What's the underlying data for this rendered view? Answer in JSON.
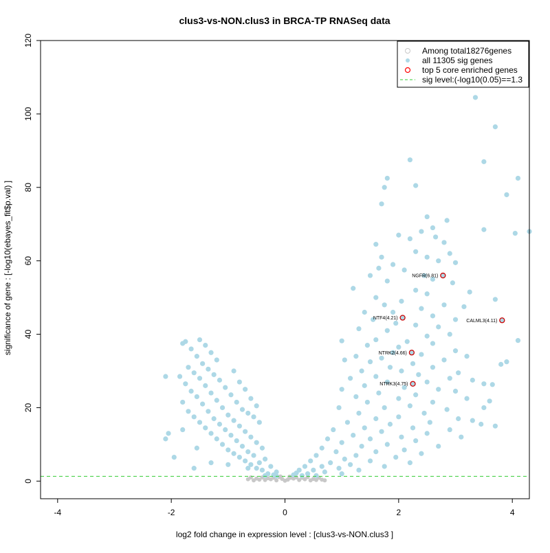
{
  "chart_data": {
    "type": "scatter",
    "title": "clus3-vs-NON.clus3 in BRCA-TP RNASeq data",
    "xlabel": "log2 fold change in expression level : [clus3-vs-NON.clus3 ]",
    "ylabel": "significance of gene : [-log10(ebayes_fit$p.val) ]",
    "xlim": [
      -4.3,
      4.3
    ],
    "ylim": [
      -4.8,
      120
    ],
    "x_ticks": [
      -4,
      -2,
      0,
      2,
      4
    ],
    "y_ticks": [
      0,
      20,
      40,
      60,
      80,
      100,
      120
    ],
    "x_tick_labels": [
      "-4",
      "-2",
      "0",
      "2",
      "4"
    ],
    "y_tick_labels": [
      "0",
      "20",
      "40",
      "60",
      "80",
      "100",
      "120"
    ],
    "grid": false,
    "legend_position": "top-right",
    "legend": [
      {
        "label": "Among total18276genes",
        "marker": "open-circle",
        "color": "#c8c8c8"
      },
      {
        "label": "all 11305 sig genes",
        "marker": "filled-circle",
        "color": "#add8e6"
      },
      {
        "label": "top 5 core enriched genes",
        "marker": "open-circle",
        "color": "#ff0000"
      },
      {
        "label": "sig level:(-log10(0.05)==1.3",
        "marker": "dashed-line",
        "color": "#00cc00"
      }
    ],
    "sig_level": 1.3,
    "colors": {
      "background_genes": "#c8c8c8",
      "sig_genes": "#add8e6",
      "core_genes": "#cc0000",
      "sig_line": "#33cc33"
    },
    "series": [
      {
        "name": "all 11305 sig genes",
        "points": [
          [
            3.35,
            104.5
          ],
          [
            3.7,
            96.5
          ],
          [
            2.2,
            87.5
          ],
          [
            3.5,
            87
          ],
          [
            1.8,
            82.5
          ],
          [
            4.1,
            82.5
          ],
          [
            1.75,
            80
          ],
          [
            2.3,
            80.5
          ],
          [
            3.9,
            78
          ],
          [
            1.7,
            75.5
          ],
          [
            2.5,
            72
          ],
          [
            2.85,
            71
          ],
          [
            2.6,
            69
          ],
          [
            3.5,
            68.5
          ],
          [
            2.4,
            68
          ],
          [
            4.05,
            67.5
          ],
          [
            4.3,
            68
          ],
          [
            2.0,
            67
          ],
          [
            2.2,
            66
          ],
          [
            2.65,
            66.5
          ],
          [
            2.8,
            65
          ],
          [
            1.6,
            64.5
          ],
          [
            2.3,
            62.5
          ],
          [
            2.5,
            61
          ],
          [
            2.9,
            62
          ],
          [
            1.7,
            61
          ],
          [
            1.65,
            58
          ],
          [
            2.7,
            60
          ],
          [
            3.0,
            59.5
          ],
          [
            1.9,
            59
          ],
          [
            2.1,
            57.5
          ],
          [
            2.45,
            56
          ],
          [
            1.5,
            56
          ],
          [
            2.6,
            55
          ],
          [
            1.8,
            54.5
          ],
          [
            2.95,
            54
          ],
          [
            1.2,
            52.5
          ],
          [
            2.3,
            52
          ],
          [
            2.5,
            51
          ],
          [
            3.25,
            51.5
          ],
          [
            1.6,
            50
          ],
          [
            3.7,
            49.5
          ],
          [
            2.05,
            49
          ],
          [
            1.75,
            48
          ],
          [
            2.4,
            47
          ],
          [
            3.15,
            47.5
          ],
          [
            2.8,
            48
          ],
          [
            1.4,
            46
          ],
          [
            1.9,
            46
          ],
          [
            2.6,
            45
          ],
          [
            3.0,
            44
          ],
          [
            1.55,
            44
          ],
          [
            1.95,
            43
          ],
          [
            2.3,
            42.5
          ],
          [
            2.7,
            42
          ],
          [
            1.3,
            41.5
          ],
          [
            1.8,
            41
          ],
          [
            2.9,
            40
          ],
          [
            2.5,
            39.5
          ],
          [
            1.6,
            38.5
          ],
          [
            2.15,
            38
          ],
          [
            2.6,
            37.5
          ],
          [
            4.1,
            38.3
          ],
          [
            1.0,
            38.2
          ],
          [
            1.45,
            37
          ],
          [
            2.0,
            36.5
          ],
          [
            3.0,
            35.5
          ],
          [
            1.9,
            35
          ],
          [
            2.4,
            34.5
          ],
          [
            3.2,
            34
          ],
          [
            1.25,
            34
          ],
          [
            1.7,
            33.5
          ],
          [
            2.8,
            33
          ],
          [
            3.9,
            32.5
          ],
          [
            1.05,
            33
          ],
          [
            1.5,
            32.5
          ],
          [
            2.25,
            32
          ],
          [
            3.8,
            31.8
          ],
          [
            2.6,
            31
          ],
          [
            1.85,
            31
          ],
          [
            1.35,
            30
          ],
          [
            2.05,
            30
          ],
          [
            3.05,
            29.5
          ],
          [
            2.35,
            29
          ],
          [
            1.6,
            28.5
          ],
          [
            2.9,
            28
          ],
          [
            1.15,
            28
          ],
          [
            3.3,
            27.5
          ],
          [
            2.5,
            27
          ],
          [
            1.8,
            27
          ],
          [
            3.5,
            26.5
          ],
          [
            3.65,
            26.3
          ],
          [
            1.4,
            26
          ],
          [
            2.1,
            25.5
          ],
          [
            2.7,
            25
          ],
          [
            1.0,
            25
          ],
          [
            3.0,
            24.5
          ],
          [
            1.65,
            24
          ],
          [
            2.3,
            23.5
          ],
          [
            1.25,
            23
          ],
          [
            3.2,
            22.5
          ],
          [
            2.0,
            22.5
          ],
          [
            2.6,
            21.5
          ],
          [
            1.45,
            21.5
          ],
          [
            3.6,
            21.8
          ],
          [
            2.2,
            20.5
          ],
          [
            0.95,
            20
          ],
          [
            1.75,
            20
          ],
          [
            3.5,
            20
          ],
          [
            2.85,
            19.5
          ],
          [
            2.45,
            18.5
          ],
          [
            1.3,
            18.5
          ],
          [
            2.0,
            17.5
          ],
          [
            3.05,
            17
          ],
          [
            1.6,
            17
          ],
          [
            3.3,
            16.5
          ],
          [
            2.55,
            16
          ],
          [
            1.1,
            16
          ],
          [
            1.85,
            15.5
          ],
          [
            3.45,
            15.5
          ],
          [
            2.25,
            14.5
          ],
          [
            1.4,
            14.5
          ],
          [
            2.9,
            14
          ],
          [
            3.7,
            15
          ],
          [
            0.85,
            14
          ],
          [
            1.7,
            13.5
          ],
          [
            2.5,
            13
          ],
          [
            1.2,
            12.5
          ],
          [
            2.05,
            12
          ],
          [
            3.1,
            12
          ],
          [
            1.5,
            11.5
          ],
          [
            0.75,
            11.5
          ],
          [
            2.3,
            11
          ],
          [
            1.0,
            10.5
          ],
          [
            1.8,
            10
          ],
          [
            2.7,
            9.5
          ],
          [
            1.35,
            9.5
          ],
          [
            0.65,
            9
          ],
          [
            2.1,
            8.5
          ],
          [
            1.6,
            8
          ],
          [
            0.9,
            8
          ],
          [
            2.4,
            7.5
          ],
          [
            1.25,
            7
          ],
          [
            0.55,
            7
          ],
          [
            1.95,
            6.5
          ],
          [
            1.05,
            6
          ],
          [
            0.45,
            5.5
          ],
          [
            1.5,
            5.5
          ],
          [
            0.8,
            5
          ],
          [
            2.2,
            5
          ],
          [
            1.15,
            4.5
          ],
          [
            0.35,
            4
          ],
          [
            0.65,
            4
          ],
          [
            1.75,
            4
          ],
          [
            0.95,
            3.5
          ],
          [
            0.25,
            3
          ],
          [
            0.5,
            3
          ],
          [
            1.3,
            3
          ],
          [
            0.7,
            2.5
          ],
          [
            0.2,
            2.2
          ],
          [
            0.4,
            2
          ],
          [
            1.0,
            2
          ],
          [
            0.15,
            1.7
          ],
          [
            0.3,
            1.5
          ],
          [
            0.55,
            1.5
          ],
          [
            -0.2,
            1.7
          ],
          [
            -0.3,
            2
          ],
          [
            -0.15,
            2.5
          ],
          [
            -0.4,
            3
          ],
          [
            -0.5,
            3.5
          ],
          [
            -0.25,
            4
          ],
          [
            -0.6,
            4.5
          ],
          [
            -0.45,
            5
          ],
          [
            -0.7,
            5.5
          ],
          [
            -0.35,
            6
          ],
          [
            -0.8,
            6.5
          ],
          [
            -0.55,
            7
          ],
          [
            -0.9,
            7.5
          ],
          [
            -0.65,
            8
          ],
          [
            -1.0,
            8.5
          ],
          [
            -0.4,
            9
          ],
          [
            -0.75,
            9.5
          ],
          [
            -1.1,
            10
          ],
          [
            -0.5,
            10.5
          ],
          [
            -0.85,
            11
          ],
          [
            -1.2,
            11.5
          ],
          [
            -0.6,
            12
          ],
          [
            -0.95,
            12.5
          ],
          [
            -1.3,
            13
          ],
          [
            -0.7,
            13.5
          ],
          [
            -1.05,
            14
          ],
          [
            -1.4,
            14.5
          ],
          [
            -0.8,
            15
          ],
          [
            -1.15,
            15.5
          ],
          [
            -0.45,
            16
          ],
          [
            -1.5,
            16
          ],
          [
            -0.9,
            16.5
          ],
          [
            -1.25,
            17
          ],
          [
            -0.55,
            17.5
          ],
          [
            -1.6,
            17.5
          ],
          [
            -1.0,
            18
          ],
          [
            -0.65,
            18.5
          ],
          [
            -1.35,
            19
          ],
          [
            -1.7,
            19
          ],
          [
            -0.75,
            19.5
          ],
          [
            -1.1,
            20
          ],
          [
            -0.5,
            20.5
          ],
          [
            -1.45,
            21
          ],
          [
            -0.85,
            21.5
          ],
          [
            -1.8,
            21.5
          ],
          [
            -1.2,
            22
          ],
          [
            -0.6,
            22.5
          ],
          [
            -1.55,
            23
          ],
          [
            -0.95,
            23.5
          ],
          [
            -1.3,
            24
          ],
          [
            -1.65,
            24.5
          ],
          [
            -0.7,
            25
          ],
          [
            -1.05,
            25.5
          ],
          [
            -1.4,
            26
          ],
          [
            -1.75,
            26.5
          ],
          [
            -0.8,
            27
          ],
          [
            -1.15,
            27.5
          ],
          [
            -1.5,
            28
          ],
          [
            -1.85,
            28.5
          ],
          [
            -1.25,
            29
          ],
          [
            -1.6,
            29.5
          ],
          [
            -0.9,
            30
          ],
          [
            -1.35,
            30.5
          ],
          [
            -1.7,
            31
          ],
          [
            -1.45,
            32
          ],
          [
            -1.2,
            33
          ],
          [
            -1.55,
            34
          ],
          [
            -1.3,
            35
          ],
          [
            -1.65,
            36
          ],
          [
            -1.4,
            37
          ],
          [
            -1.75,
            38
          ],
          [
            -1.5,
            38.5
          ],
          [
            -1.8,
            37.5
          ],
          [
            -2.1,
            28.5
          ],
          [
            -2.05,
            13
          ],
          [
            -2.1,
            11.5
          ],
          [
            -1.95,
            6.5
          ],
          [
            -1.55,
            9
          ],
          [
            -1.3,
            5
          ],
          [
            -1.0,
            4.5
          ],
          [
            -0.65,
            3.5
          ],
          [
            -0.35,
            1.5
          ],
          [
            -0.15,
            1.4
          ],
          [
            -1.8,
            14
          ],
          [
            -1.6,
            3.5
          ]
        ]
      }
    ],
    "background_points": [
      [
        -0.35,
        0.3
      ],
      [
        -0.25,
        0.5
      ],
      [
        -0.15,
        0.2
      ],
      [
        -0.05,
        0.6
      ],
      [
        0.05,
        0.4
      ],
      [
        0.15,
        0.7
      ],
      [
        0.25,
        0.3
      ],
      [
        0.35,
        0.5
      ],
      [
        -0.45,
        0.4
      ],
      [
        0.45,
        0.2
      ],
      [
        -0.2,
        0.9
      ],
      [
        0.2,
        1.0
      ],
      [
        0.0,
        0.1
      ],
      [
        -0.1,
        1.1
      ],
      [
        0.1,
        0.9
      ],
      [
        -0.3,
        0.8
      ],
      [
        0.3,
        0.9
      ],
      [
        -0.4,
        1.0
      ],
      [
        0.4,
        1.1
      ],
      [
        0.5,
        0.6
      ],
      [
        -0.5,
        0.7
      ],
      [
        0.55,
        0.3
      ],
      [
        -0.55,
        0.2
      ],
      [
        0.6,
        0.9
      ],
      [
        -0.6,
        1.0
      ],
      [
        0.65,
        0.4
      ],
      [
        0.7,
        0.2
      ],
      [
        -0.65,
        0.5
      ],
      [
        0.08,
        1.2
      ],
      [
        -0.08,
        1.25
      ]
    ],
    "core_genes": [
      {
        "label": "NGFR(6.81)",
        "x": 2.78,
        "y": 56
      },
      {
        "label": "NTF4(4.21)",
        "x": 2.07,
        "y": 44.5
      },
      {
        "label": "CALML3(4.11)",
        "x": 3.82,
        "y": 43.8
      },
      {
        "label": "NTRK2(4.66)",
        "x": 2.23,
        "y": 35
      },
      {
        "label": "NTRK3(4.75)",
        "x": 2.25,
        "y": 26.5
      }
    ]
  }
}
